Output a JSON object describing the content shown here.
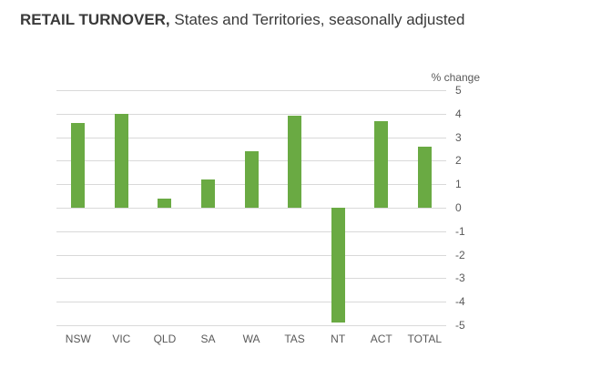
{
  "title": {
    "bold": "RETAIL TURNOVER,",
    "regular": " States and Territories, seasonally adjusted"
  },
  "chart_data": {
    "type": "bar",
    "categories": [
      "NSW",
      "VIC",
      "QLD",
      "SA",
      "WA",
      "TAS",
      "NT",
      "ACT",
      "TOTAL"
    ],
    "values": [
      3.6,
      4.0,
      0.4,
      1.2,
      2.4,
      3.9,
      -4.9,
      3.7,
      2.6
    ],
    "title": "RETAIL TURNOVER, States and Territories, seasonally adjusted",
    "xlabel": "",
    "ylabel": "% change",
    "ylim": [
      -5,
      5
    ],
    "ytick_step": 1,
    "bar_color": "#6aaa43",
    "grid": true,
    "legend": "none",
    "axis_labels_side": "right"
  }
}
